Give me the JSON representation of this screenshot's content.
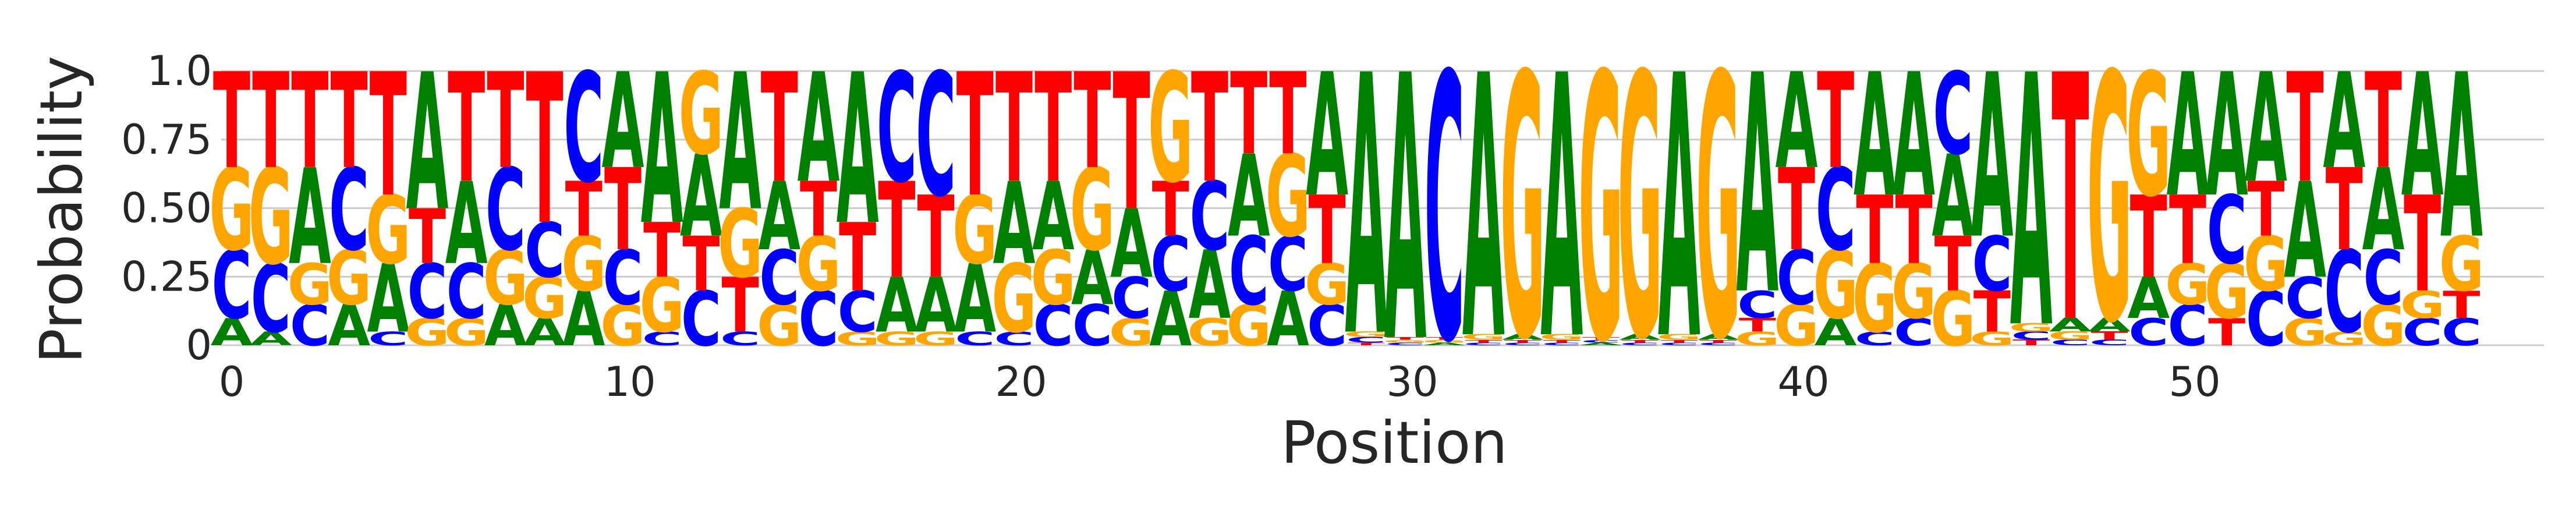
{
  "chart_data": {
    "type": "sequence-logo",
    "xlabel": "Position",
    "ylabel": "Probability",
    "ylim": [
      0,
      1
    ],
    "yticks": [
      {
        "value": 0,
        "label": "0"
      },
      {
        "value": 0.25,
        "label": "0.25"
      },
      {
        "value": 0.5,
        "label": "0.50"
      },
      {
        "value": 0.75,
        "label": "0.75"
      },
      {
        "value": 1,
        "label": "1.0"
      }
    ],
    "xticks": [
      {
        "value": 0,
        "label": "0"
      },
      {
        "value": 10,
        "label": "10"
      },
      {
        "value": 20,
        "label": "20"
      },
      {
        "value": 30,
        "label": "30"
      },
      {
        "value": 40,
        "label": "40"
      },
      {
        "value": 50,
        "label": "50"
      }
    ],
    "grid": "horizontal",
    "colors": {
      "A": "#008000",
      "C": "#0000ff",
      "G": "#ffa500",
      "T": "#ff0000"
    },
    "positions": [
      {
        "A": 0.1,
        "C": 0.25,
        "G": 0.3,
        "T": 0.35
      },
      {
        "A": 0.05,
        "C": 0.25,
        "G": 0.35,
        "T": 0.35
      },
      {
        "A": 0.35,
        "C": 0.15,
        "G": 0.15,
        "T": 0.35
      },
      {
        "A": 0.15,
        "C": 0.3,
        "G": 0.2,
        "T": 0.35
      },
      {
        "A": 0.25,
        "C": 0.05,
        "G": 0.25,
        "T": 0.45
      },
      {
        "A": 0.5,
        "C": 0.2,
        "G": 0.1,
        "T": 0.2
      },
      {
        "A": 0.3,
        "C": 0.2,
        "G": 0.1,
        "T": 0.4
      },
      {
        "A": 0.15,
        "C": 0.3,
        "G": 0.2,
        "T": 0.35
      },
      {
        "A": 0.1,
        "C": 0.2,
        "G": 0.15,
        "T": 0.55
      },
      {
        "A": 0.2,
        "C": 0.4,
        "G": 0.2,
        "T": 0.2
      },
      {
        "A": 0.35,
        "C": 0.2,
        "G": 0.15,
        "T": 0.3
      },
      {
        "A": 0.55,
        "C": 0.05,
        "G": 0.2,
        "T": 0.2
      },
      {
        "A": 0.3,
        "C": 0.2,
        "G": 0.3,
        "T": 0.2
      },
      {
        "A": 0.5,
        "C": 0.05,
        "G": 0.25,
        "T": 0.2
      },
      {
        "A": 0.25,
        "C": 0.2,
        "G": 0.15,
        "T": 0.4
      },
      {
        "A": 0.4,
        "C": 0.2,
        "G": 0.2,
        "T": 0.2
      },
      {
        "A": 0.55,
        "C": 0.15,
        "G": 0.05,
        "T": 0.25
      },
      {
        "A": 0.2,
        "C": 0.4,
        "G": 0.05,
        "T": 0.35
      },
      {
        "A": 0.2,
        "C": 0.45,
        "G": 0.05,
        "T": 0.3
      },
      {
        "A": 0.25,
        "C": 0.05,
        "G": 0.25,
        "T": 0.45
      },
      {
        "A": 0.3,
        "C": 0.05,
        "G": 0.25,
        "T": 0.4
      },
      {
        "A": 0.25,
        "C": 0.15,
        "G": 0.2,
        "T": 0.4
      },
      {
        "A": 0.2,
        "C": 0.15,
        "G": 0.3,
        "T": 0.35
      },
      {
        "A": 0.25,
        "C": 0.15,
        "G": 0.1,
        "T": 0.5
      },
      {
        "A": 0.2,
        "C": 0.2,
        "G": 0.4,
        "T": 0.2
      },
      {
        "A": 0.25,
        "C": 0.25,
        "G": 0.1,
        "T": 0.4
      },
      {
        "A": 0.3,
        "C": 0.25,
        "G": 0.15,
        "T": 0.3
      },
      {
        "A": 0.2,
        "C": 0.2,
        "G": 0.3,
        "T": 0.3
      },
      {
        "A": 0.45,
        "C": 0.15,
        "G": 0.15,
        "T": 0.25
      },
      {
        "A": 0.95,
        "C": 0.02,
        "G": 0.02,
        "T": 0.01
      },
      {
        "A": 0.97,
        "C": 0.01,
        "G": 0.01,
        "T": 0.01
      },
      {
        "A": 0.01,
        "C": 0.97,
        "G": 0.01,
        "T": 0.01
      },
      {
        "A": 0.96,
        "C": 0.01,
        "G": 0.02,
        "T": 0.01
      },
      {
        "A": 0.02,
        "C": 0.01,
        "G": 0.96,
        "T": 0.01
      },
      {
        "A": 0.96,
        "C": 0.01,
        "G": 0.02,
        "T": 0.01
      },
      {
        "A": 0.01,
        "C": 0.01,
        "G": 0.97,
        "T": 0.01
      },
      {
        "A": 0.02,
        "C": 0.01,
        "G": 0.96,
        "T": 0.01
      },
      {
        "A": 0.96,
        "C": 0.01,
        "G": 0.02,
        "T": 0.01
      },
      {
        "A": 0.02,
        "C": 0.01,
        "G": 0.96,
        "T": 0.01
      },
      {
        "A": 0.8,
        "C": 0.1,
        "G": 0.05,
        "T": 0.05
      },
      {
        "A": 0.35,
        "C": 0.2,
        "G": 0.15,
        "T": 0.3
      },
      {
        "A": 0.1,
        "C": 0.3,
        "G": 0.25,
        "T": 0.35
      },
      {
        "A": 0.45,
        "C": 0.05,
        "G": 0.25,
        "T": 0.25
      },
      {
        "A": 0.45,
        "C": 0.1,
        "G": 0.2,
        "T": 0.25
      },
      {
        "A": 0.3,
        "C": 0.3,
        "G": 0.2,
        "T": 0.2
      },
      {
        "A": 0.6,
        "C": 0.2,
        "G": 0.05,
        "T": 0.15
      },
      {
        "A": 0.92,
        "C": 0.03,
        "G": 0.03,
        "T": 0.02
      },
      {
        "A": 0.05,
        "C": 0.02,
        "G": 0.03,
        "T": 0.9
      },
      {
        "A": 0.05,
        "C": 0.02,
        "G": 0.9,
        "T": 0.03
      },
      {
        "A": 0.15,
        "C": 0.1,
        "G": 0.45,
        "T": 0.3
      },
      {
        "A": 0.45,
        "C": 0.15,
        "G": 0.15,
        "T": 0.25
      },
      {
        "A": 0.45,
        "C": 0.25,
        "G": 0.2,
        "T": 0.1
      },
      {
        "A": 0.4,
        "C": 0.2,
        "G": 0.2,
        "T": 0.2
      },
      {
        "A": 0.35,
        "C": 0.15,
        "G": 0.1,
        "T": 0.4
      },
      {
        "A": 0.35,
        "C": 0.3,
        "G": 0.05,
        "T": 0.3
      },
      {
        "A": 0.3,
        "C": 0.2,
        "G": 0.15,
        "T": 0.35
      },
      {
        "A": 0.45,
        "C": 0.1,
        "G": 0.1,
        "T": 0.35
      },
      {
        "A": 0.6,
        "C": 0.1,
        "G": 0.2,
        "T": 0.1
      }
    ]
  }
}
